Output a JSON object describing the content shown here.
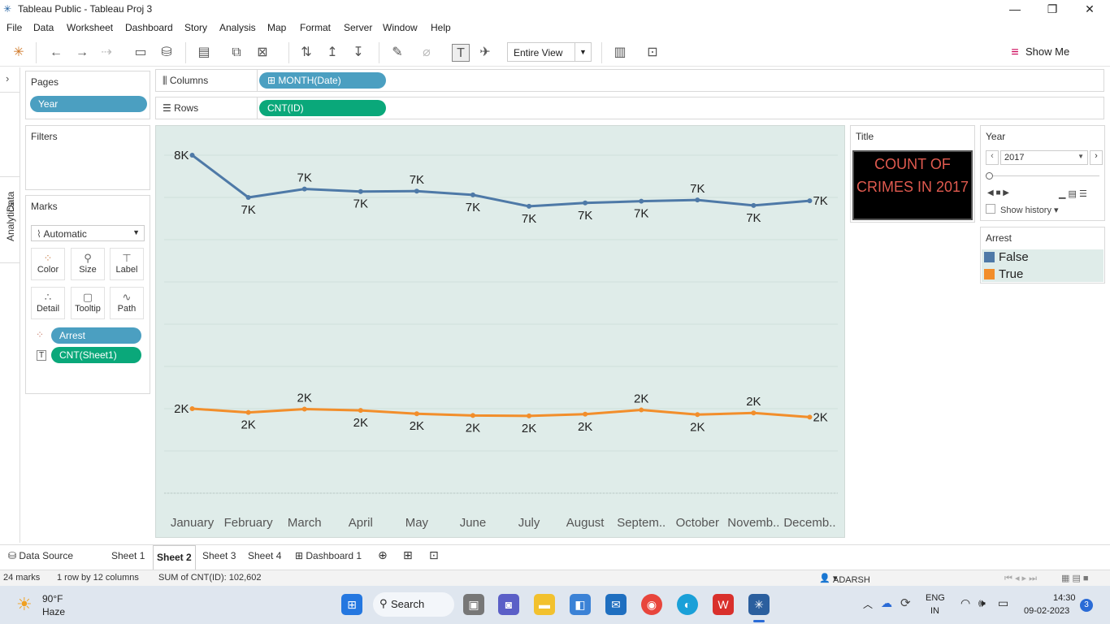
{
  "window": {
    "title": "Tableau Public - Tableau Proj 3"
  },
  "menu": [
    "File",
    "Data",
    "Worksheet",
    "Dashboard",
    "Story",
    "Analysis",
    "Map",
    "Format",
    "Server",
    "Window",
    "Help"
  ],
  "toolbar": {
    "fit": "Entire View",
    "show_me": "Show Me"
  },
  "side_tabs": {
    "data": "Data",
    "analytics": "Analytics"
  },
  "pages": {
    "title": "Pages",
    "pill": "Year"
  },
  "filters": {
    "title": "Filters"
  },
  "marks": {
    "title": "Marks",
    "type": "Automatic",
    "buttons": [
      "Color",
      "Size",
      "Label",
      "Detail",
      "Tooltip",
      "Path"
    ],
    "pills": [
      "Arrest",
      "CNT(Sheet1)"
    ]
  },
  "shelves": {
    "columns_label": "Columns",
    "columns_pill": "MONTH(Date)",
    "rows_label": "Rows",
    "rows_pill": "CNT(ID)"
  },
  "title_card": {
    "title": "Title",
    "text": "COUNT OF CRIMES IN 2017"
  },
  "year_card": {
    "title": "Year",
    "value": "2017",
    "show_history": "Show history"
  },
  "legend": {
    "title": "Arrest",
    "items": [
      {
        "label": "False",
        "color": "#4e79a7"
      },
      {
        "label": "True",
        "color": "#f28e2b"
      }
    ]
  },
  "chart_data": {
    "type": "line",
    "categories": [
      "January",
      "February",
      "March",
      "April",
      "May",
      "June",
      "July",
      "August",
      "Septem..",
      "October",
      "Novemb..",
      "Decemb.."
    ],
    "series": [
      {
        "name": "False",
        "color": "#4e79a7",
        "values": [
          8000,
          7000,
          7200,
          7140,
          7150,
          7060,
          6790,
          6870,
          6910,
          6940,
          6810,
          6920
        ],
        "labels": [
          "8K",
          "7K",
          "7K",
          "7K",
          "7K",
          "7K",
          "7K",
          "7K",
          "7K",
          "7K",
          "7K",
          "7K"
        ]
      },
      {
        "name": "True",
        "color": "#f28e2b",
        "values": [
          2000,
          1910,
          1990,
          1960,
          1880,
          1840,
          1830,
          1870,
          1970,
          1860,
          1900,
          1800
        ],
        "labels": [
          "2K",
          "2K",
          "2K",
          "2K",
          "2K",
          "2K",
          "2K",
          "2K",
          "2K",
          "2K",
          "2K",
          "2K"
        ]
      }
    ],
    "ylim": [
      0,
      8500
    ]
  },
  "tabs": [
    "Data Source",
    "Sheet 1",
    "Sheet 2",
    "Sheet 3",
    "Sheet 4",
    "Dashboard 1"
  ],
  "active_tab": "Sheet 2",
  "status": {
    "marks": "24 marks",
    "dims": "1 row by 12 columns",
    "sum": "SUM of CNT(ID): 102,602",
    "user": "ADARSH DUBEY"
  },
  "taskbar": {
    "temp": "90°F",
    "weather": "Haze",
    "search": "Search",
    "lang1": "ENG",
    "lang2": "IN",
    "time": "14:30",
    "date": "09-02-2023",
    "badge": "3"
  }
}
